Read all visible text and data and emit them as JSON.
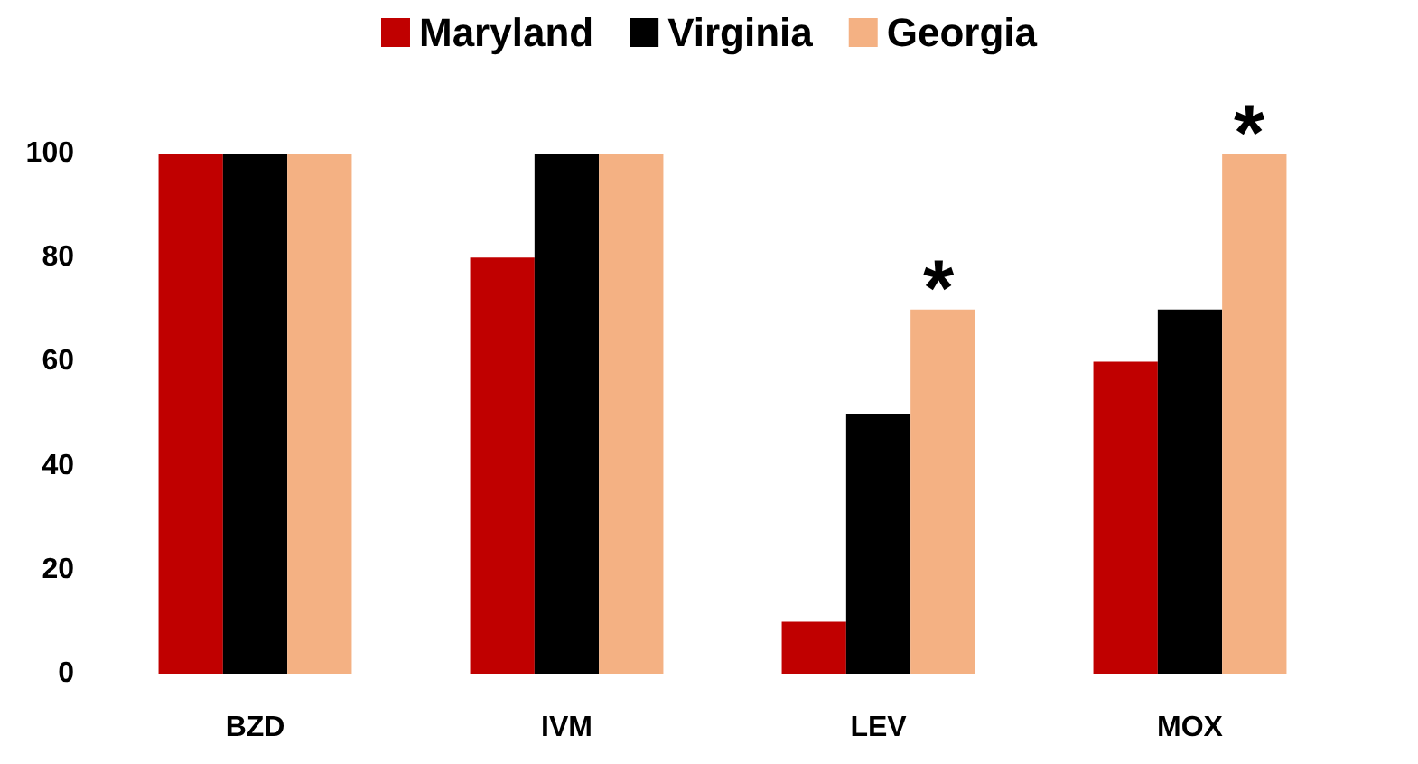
{
  "chart_data": {
    "type": "bar",
    "categories": [
      "BZD",
      "IVM",
      "LEV",
      "MOX"
    ],
    "series": [
      {
        "name": "Maryland",
        "color": "#c00000",
        "values": [
          100,
          80,
          10,
          60
        ]
      },
      {
        "name": "Virginia",
        "color": "#000000",
        "values": [
          100,
          100,
          50,
          70
        ]
      },
      {
        "name": "Georgia",
        "color": "#f4b183",
        "values": [
          100,
          100,
          70,
          100
        ]
      }
    ],
    "ylim": [
      0,
      100
    ],
    "yticks": [
      0,
      20,
      40,
      60,
      80,
      100
    ],
    "grid": false,
    "legend": "top",
    "annotations": [
      "*",
      "*"
    ]
  }
}
